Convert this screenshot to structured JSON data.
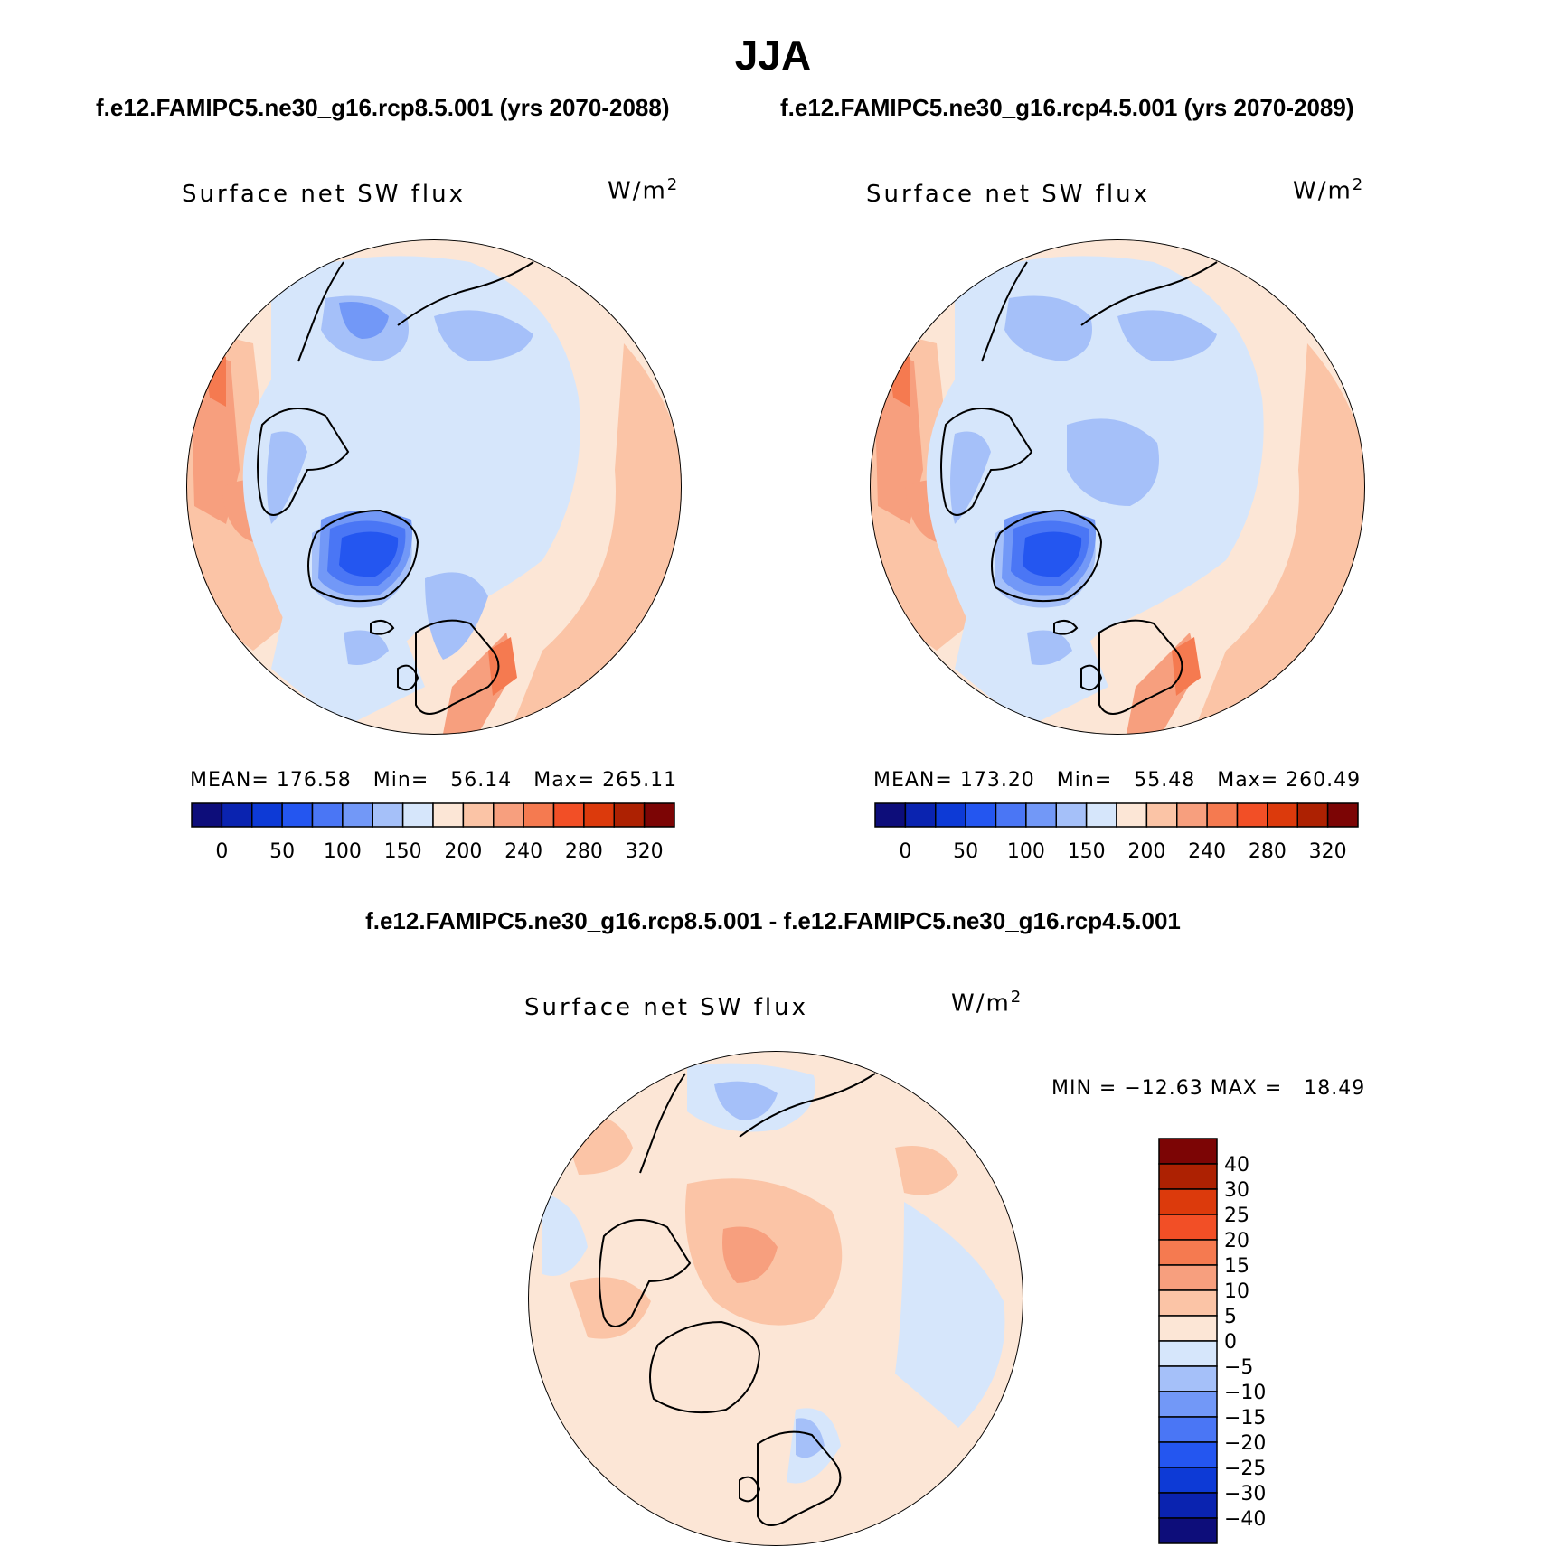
{
  "figure": {
    "title": "JJA",
    "left_case": "f.e12.FAMIPC5.ne30_g16.rcp8.5.001 (yrs 2070-2088)",
    "right_case": "f.e12.FAMIPC5.ne30_g16.rcp4.5.001 (yrs 2070-2089)",
    "diff_case": "f.e12.FAMIPC5.ne30_g16.rcp8.5.001 - f.e12.FAMIPC5.ne30_g16.rcp4.5.001"
  },
  "panels": [
    {
      "variable": "Surface net SW flux",
      "units_base": "W/m",
      "units_exp": "2",
      "mean_label": "MEAN=",
      "mean_value": "176.58",
      "min_label": "Min=",
      "min_value": "56.14",
      "max_label": "Max=",
      "max_value": "265.11"
    },
    {
      "variable": "Surface net SW flux",
      "units_base": "W/m",
      "units_exp": "2",
      "mean_label": "MEAN=",
      "mean_value": "173.20",
      "min_label": "Min=",
      "min_value": "55.48",
      "max_label": "Max=",
      "max_value": "260.49"
    },
    {
      "variable": "Surface net SW flux",
      "units_base": "W/m",
      "units_exp": "2",
      "minmax_text": "MIN = −12.63 MAX =   18.49"
    }
  ],
  "colorbar_main": {
    "colors": [
      "#0d0d7a",
      "#0a23b0",
      "#0d3ad6",
      "#2456f0",
      "#4a76f5",
      "#7298f7",
      "#a5c0f9",
      "#d6e6fb",
      "#fce6d6",
      "#fbc4a6",
      "#f79f7e",
      "#f57a50",
      "#f24f26",
      "#dc3a0c",
      "#ad2102",
      "#7c0505"
    ],
    "tick_labels": [
      "0",
      "50",
      "100",
      "150",
      "200",
      "240",
      "280",
      "320"
    ]
  },
  "colorbar_diff": {
    "colors": [
      "#0d0d7a",
      "#0a23b0",
      "#0d3ad6",
      "#2456f0",
      "#4a76f5",
      "#7298f7",
      "#a5c0f9",
      "#d6e6fb",
      "#fce6d6",
      "#fbc4a6",
      "#f79f7e",
      "#f57a50",
      "#f24f26",
      "#dc3a0c",
      "#ad2102",
      "#7c0505"
    ],
    "tick_labels": [
      "40",
      "30",
      "25",
      "20",
      "15",
      "10",
      "5",
      "0",
      "−5",
      "−10",
      "−15",
      "−20",
      "−25",
      "−30",
      "−40"
    ]
  },
  "palette": {
    "light_blue": "#d6e6fb",
    "blue_150": "#a5c0f9",
    "blue_100": "#7298f7",
    "blue_50": "#4a76f5",
    "blue_0": "#2456f0",
    "peach_200": "#fce6d6",
    "salmon_240": "#fbc4a6",
    "orange_280": "#f79f7e",
    "red_320": "#f57a50"
  }
}
